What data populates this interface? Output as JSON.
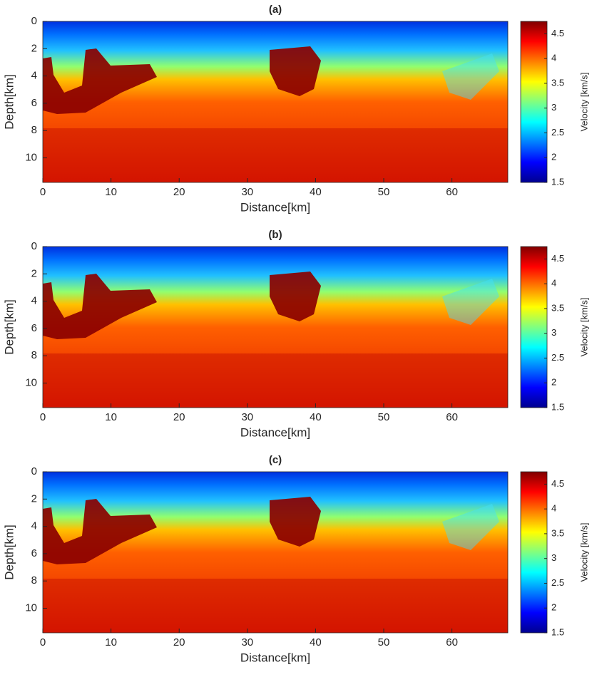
{
  "chart_data": [
    {
      "type": "heatmap",
      "title": "(a)",
      "xlabel": "Distance[km]",
      "ylabel": "Depth[km]",
      "xlim": [
        0,
        68.2
      ],
      "ylim": [
        11.8,
        0
      ],
      "xticks": [
        0,
        10,
        20,
        30,
        40,
        50,
        60
      ],
      "yticks": [
        0,
        2,
        4,
        6,
        8,
        10
      ],
      "colormap": "jet",
      "colorbar_label": "Velocity [km/s]",
      "clim": [
        1.5,
        4.75
      ],
      "cticks": [
        1.5,
        2,
        2.5,
        3,
        3.5,
        4,
        4.5
      ]
    },
    {
      "type": "heatmap",
      "title": "(b)",
      "xlabel": "Distance[km]",
      "ylabel": "Depth[km]",
      "xlim": [
        0,
        68.2
      ],
      "ylim": [
        11.8,
        0
      ],
      "xticks": [
        0,
        10,
        20,
        30,
        40,
        50,
        60
      ],
      "yticks": [
        0,
        2,
        4,
        6,
        8,
        10
      ],
      "colormap": "jet",
      "colorbar_label": "Velocity [km/s]",
      "clim": [
        1.5,
        4.75
      ],
      "cticks": [
        1.5,
        2,
        2.5,
        3,
        3.5,
        4,
        4.5
      ]
    },
    {
      "type": "heatmap",
      "title": "(c)",
      "xlabel": "Distance[km]",
      "ylabel": "Depth[km]",
      "xlim": [
        0,
        68.2
      ],
      "ylim": [
        11.8,
        0
      ],
      "xticks": [
        0,
        10,
        20,
        30,
        40,
        50,
        60
      ],
      "yticks": [
        0,
        2,
        4,
        6,
        8,
        10
      ],
      "colormap": "jet",
      "colorbar_label": "Velocity [km/s]",
      "clim": [
        1.5,
        4.75
      ],
      "cticks": [
        1.5,
        2,
        2.5,
        3,
        3.5,
        4,
        4.5
      ]
    }
  ]
}
